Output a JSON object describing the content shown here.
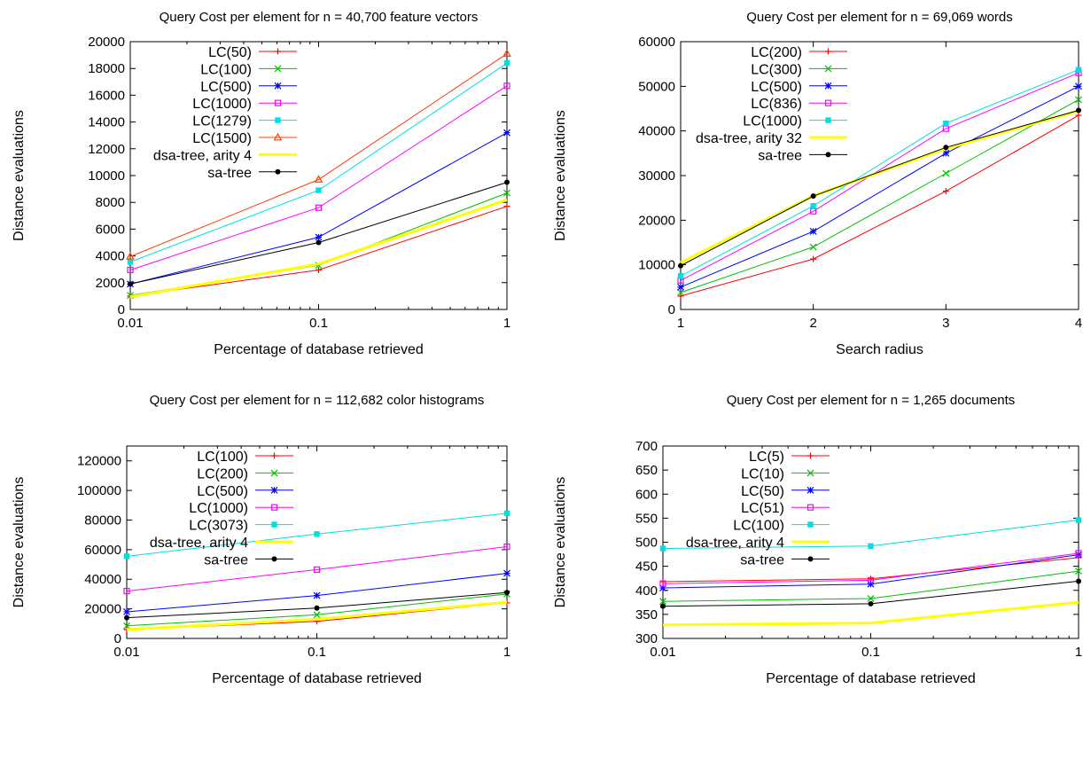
{
  "chart_data": [
    {
      "type": "line",
      "title": "Query Cost per element for n = 40,700 feature vectors",
      "xlabel": "Percentage of database retrieved",
      "ylabel": "Distance evaluations",
      "xscale": "log",
      "xlim": [
        0.01,
        1
      ],
      "ylim": [
        0,
        20000
      ],
      "xticks": [
        0.01,
        0.1,
        1
      ],
      "xtick_labels": [
        "0.01",
        "0.1",
        "1"
      ],
      "yticks": [
        0,
        2000,
        4000,
        6000,
        8000,
        10000,
        12000,
        14000,
        16000,
        18000,
        20000
      ],
      "ytick_labels": [
        "0",
        "2000",
        "4000",
        "6000",
        "8000",
        "10000",
        "12000",
        "14000",
        "16000",
        "18000",
        "20000"
      ],
      "grid": false,
      "legend_position": "top-left",
      "x": [
        0.01,
        0.1,
        1
      ],
      "series": [
        {
          "name": "LC(50)",
          "color": "#ff0000",
          "marker": "plus",
          "values": [
            1000,
            2950,
            7700
          ]
        },
        {
          "name": "LC(100)",
          "color": "#00c000",
          "marker": "cross",
          "values": [
            1050,
            3300,
            8700
          ]
        },
        {
          "name": "LC(500)",
          "color": "#0000ff",
          "marker": "star",
          "values": [
            1900,
            5400,
            13200
          ]
        },
        {
          "name": "LC(1000)",
          "color": "#ff00ff",
          "marker": "open-square",
          "values": [
            2950,
            7600,
            16700
          ]
        },
        {
          "name": "LC(1279)",
          "color": "#00e0e0",
          "marker": "filled-square",
          "values": [
            3550,
            8900,
            18400
          ]
        },
        {
          "name": "LC(1500)",
          "color": "#ff4000",
          "marker": "open-triangle",
          "values": [
            3950,
            9700,
            19100
          ]
        },
        {
          "name": "dsa-tree, arity 4",
          "color": "#ffff00",
          "marker": "none",
          "thick": true,
          "values": [
            950,
            3400,
            8200
          ]
        },
        {
          "name": "sa-tree",
          "color": "#000000",
          "marker": "filled-circle",
          "values": [
            1900,
            5000,
            9500
          ]
        }
      ]
    },
    {
      "type": "line",
      "title": "Query Cost per element for n = 69,069 words",
      "xlabel": "Search radius",
      "ylabel": "Distance evaluations",
      "xscale": "linear",
      "xlim": [
        1,
        4
      ],
      "ylim": [
        0,
        60000
      ],
      "xticks": [
        1,
        2,
        3,
        4
      ],
      "xtick_labels": [
        "1",
        "2",
        "3",
        "4"
      ],
      "yticks": [
        0,
        10000,
        20000,
        30000,
        40000,
        50000,
        60000
      ],
      "ytick_labels": [
        "0",
        "10000",
        "20000",
        "30000",
        "40000",
        "50000",
        "60000"
      ],
      "grid": false,
      "legend_position": "top-left",
      "x": [
        1,
        2,
        3,
        4
      ],
      "series": [
        {
          "name": "LC(200)",
          "color": "#ff0000",
          "marker": "plus",
          "values": [
            3000,
            11300,
            26500,
            43500
          ]
        },
        {
          "name": "LC(300)",
          "color": "#00c000",
          "marker": "cross",
          "values": [
            3800,
            14000,
            30500,
            47000
          ]
        },
        {
          "name": "LC(500)",
          "color": "#0000ff",
          "marker": "star",
          "values": [
            5000,
            17500,
            35000,
            50000
          ]
        },
        {
          "name": "LC(836)",
          "color": "#ff00ff",
          "marker": "open-square",
          "values": [
            6500,
            22000,
            40500,
            53000
          ]
        },
        {
          "name": "LC(1000)",
          "color": "#00e0e0",
          "marker": "filled-square",
          "values": [
            7500,
            23200,
            41700,
            53700
          ]
        },
        {
          "name": "dsa-tree, arity 32",
          "color": "#ffff00",
          "marker": "none",
          "thick": true,
          "values": [
            10500,
            25500,
            36000,
            44500
          ]
        },
        {
          "name": "sa-tree",
          "color": "#000000",
          "marker": "filled-circle",
          "values": [
            9800,
            25400,
            36300,
            44600
          ]
        }
      ]
    },
    {
      "type": "line",
      "title": "Query Cost per element for n = 112,682 color histograms",
      "xlabel": "Percentage of database retrieved",
      "ylabel": "Distance evaluations",
      "xscale": "log",
      "xlim": [
        0.01,
        1
      ],
      "ylim": [
        0,
        130000
      ],
      "xticks": [
        0.01,
        0.1,
        1
      ],
      "xtick_labels": [
        "0.01",
        "0.1",
        "1"
      ],
      "yticks": [
        0,
        20000,
        40000,
        60000,
        80000,
        100000,
        120000
      ],
      "ytick_labels": [
        "0",
        "20000",
        "40000",
        "60000",
        "80000",
        "100000",
        "120000"
      ],
      "grid": false,
      "legend_position": "top-left",
      "x": [
        0.01,
        0.1,
        1
      ],
      "series": [
        {
          "name": "LC(100)",
          "color": "#ff0000",
          "marker": "plus",
          "values": [
            6000,
            11500,
            24000
          ]
        },
        {
          "name": "LC(200)",
          "color": "#00c000",
          "marker": "cross",
          "values": [
            8500,
            16000,
            30000
          ]
        },
        {
          "name": "LC(500)",
          "color": "#0000ff",
          "marker": "star",
          "values": [
            18000,
            29000,
            44000
          ]
        },
        {
          "name": "LC(1000)",
          "color": "#ff00ff",
          "marker": "open-square",
          "values": [
            32000,
            46500,
            62000
          ]
        },
        {
          "name": "LC(3073)",
          "color": "#00e0e0",
          "marker": "filled-square",
          "values": [
            55500,
            70500,
            84500
          ]
        },
        {
          "name": "dsa-tree, arity 4",
          "color": "#ffff00",
          "marker": "none",
          "thick": true,
          "values": [
            6000,
            13000,
            24500
          ]
        },
        {
          "name": "sa-tree",
          "color": "#000000",
          "marker": "filled-circle",
          "values": [
            14000,
            20500,
            31000
          ]
        }
      ]
    },
    {
      "type": "line",
      "title": "Query Cost per element for n = 1,265 documents",
      "xlabel": "Percentage of database retrieved",
      "ylabel": "Distance evaluations",
      "xscale": "log",
      "xlim": [
        0.01,
        1
      ],
      "ylim": [
        300,
        700
      ],
      "xticks": [
        0.01,
        0.1,
        1
      ],
      "xtick_labels": [
        "0.01",
        "0.1",
        "1"
      ],
      "yticks": [
        300,
        350,
        400,
        450,
        500,
        550,
        600,
        650,
        700
      ],
      "ytick_labels": [
        "300",
        "350",
        "400",
        "450",
        "500",
        "550",
        "600",
        "650",
        "700"
      ],
      "grid": false,
      "legend_position": "top-left",
      "x": [
        0.01,
        0.1,
        1
      ],
      "series": [
        {
          "name": "LC(5)",
          "color": "#ff0000",
          "marker": "plus",
          "values": [
            418,
            424,
            468
          ]
        },
        {
          "name": "LC(10)",
          "color": "#00c000",
          "marker": "cross",
          "values": [
            377,
            383,
            440
          ]
        },
        {
          "name": "LC(50)",
          "color": "#0000ff",
          "marker": "star",
          "values": [
            405,
            413,
            474
          ]
        },
        {
          "name": "LC(51)",
          "color": "#ff00ff",
          "marker": "open-square",
          "values": [
            414,
            421,
            477
          ]
        },
        {
          "name": "LC(100)",
          "color": "#00e0e0",
          "marker": "filled-square",
          "values": [
            487,
            492,
            546
          ]
        },
        {
          "name": "dsa-tree, arity 4",
          "color": "#ffff00",
          "marker": "none",
          "thick": true,
          "values": [
            328,
            332,
            375
          ]
        },
        {
          "name": "sa-tree",
          "color": "#000000",
          "marker": "filled-circle",
          "values": [
            367,
            372,
            419
          ]
        }
      ]
    }
  ]
}
